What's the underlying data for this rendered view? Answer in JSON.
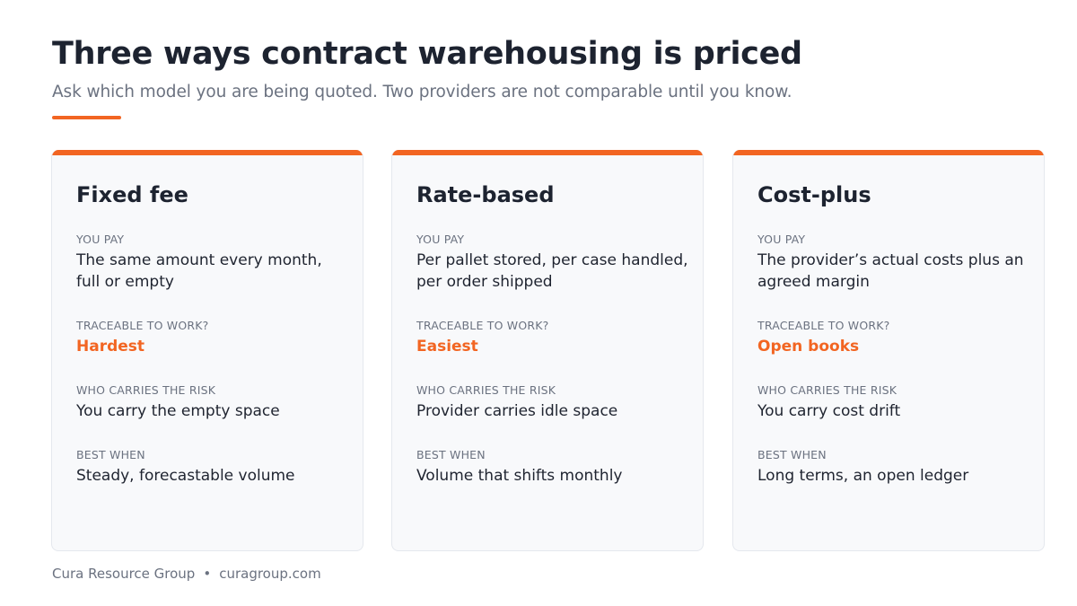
{
  "header": {
    "title": "Three ways contract warehousing is priced",
    "subtitle": "Ask which model you are being quoted. Two providers are not comparable until you know."
  },
  "colors": {
    "accent": "#f26522",
    "text": "#1d2330",
    "muted": "#6b7280",
    "card_bg": "#f8f9fb"
  },
  "labels": {
    "you_pay": "YOU PAY",
    "traceable": "TRACEABLE TO WORK?",
    "risk": "WHO CARRIES THE RISK",
    "best": "BEST WHEN"
  },
  "cards": [
    {
      "title": "Fixed fee",
      "you_pay": "The same amount every month, full or empty",
      "traceable": "Hardest",
      "risk": "You carry the empty space",
      "best": "Steady, forecastable volume"
    },
    {
      "title": "Rate-based",
      "you_pay": "Per pallet stored, per case handled, per order shipped",
      "traceable": "Easiest",
      "risk": "Provider carries idle space",
      "best": "Volume that shifts monthly"
    },
    {
      "title": "Cost-plus",
      "you_pay": "The provider’s actual costs plus an agreed margin",
      "traceable": "Open books",
      "risk": "You carry cost drift",
      "best": "Long terms, an open ledger"
    }
  ],
  "footer": {
    "company": "Cura Resource Group",
    "separator": "•",
    "website": "curagroup.com"
  }
}
